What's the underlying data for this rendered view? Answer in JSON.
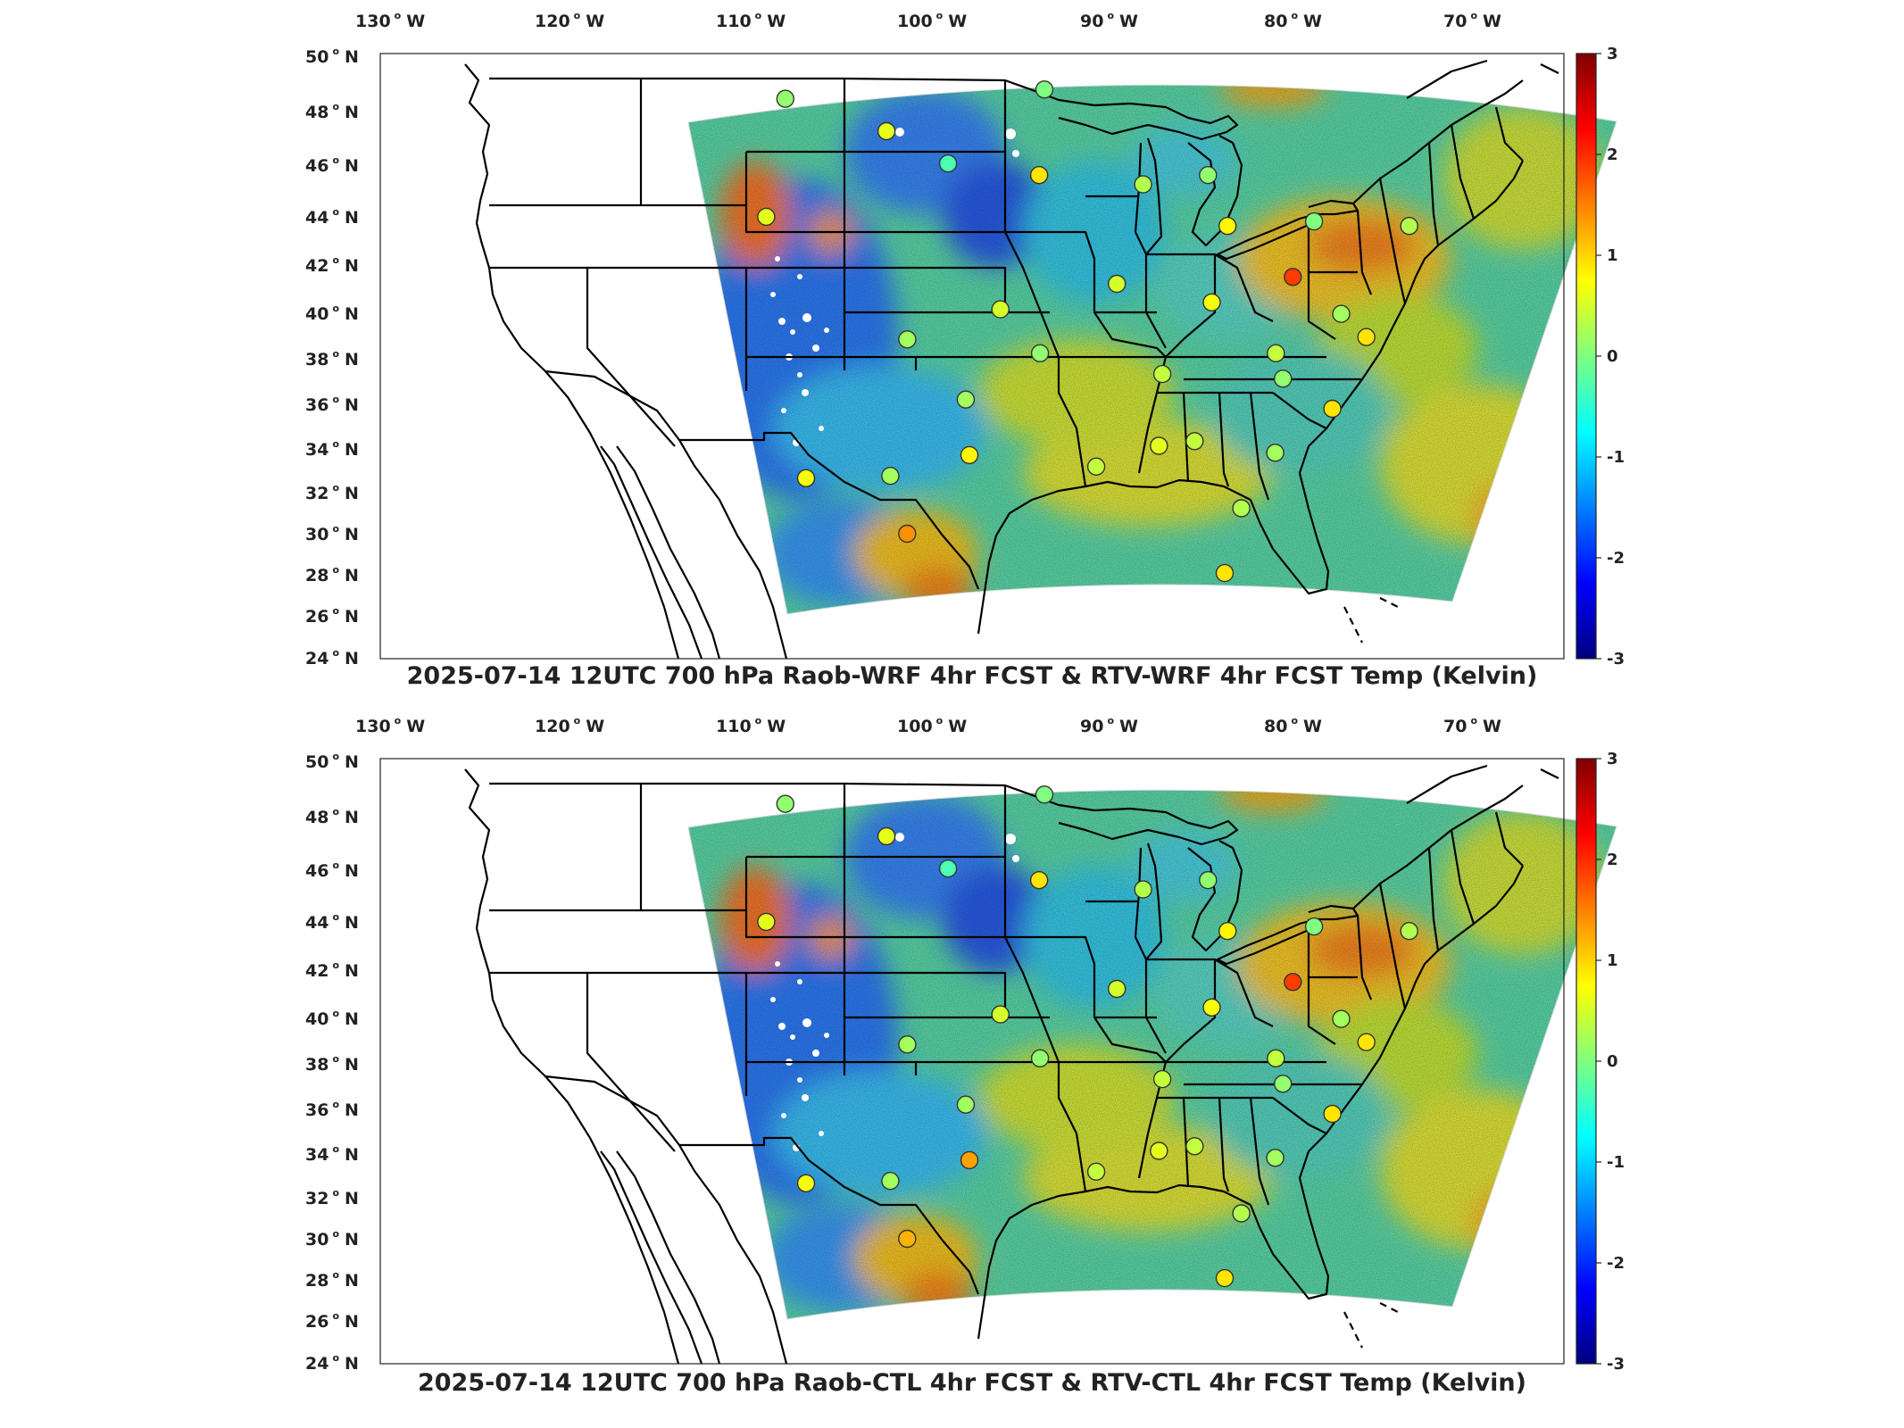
{
  "panels": [
    {
      "id": "top",
      "title": "2025-07-14 12UTC 700 hPa Raob-WRF 4hr FCST & RTV-WRF 4hr FCST Temp (Kelvin)",
      "lon_labels": [
        "130",
        "120",
        "110",
        "100",
        "90",
        "80",
        "70"
      ],
      "lon_suffix": "W",
      "lat_labels": [
        "50",
        "48",
        "46",
        "44",
        "42",
        "40",
        "38",
        "36",
        "34",
        "32",
        "30",
        "28",
        "26",
        "24"
      ],
      "lat_suffix": "N",
      "colorbar": {
        "min": -3,
        "max": 3,
        "ticks": [
          "3",
          "2",
          "1",
          "0",
          "-1",
          "-2",
          "-3"
        ]
      },
      "stations": [
        {
          "lon": -106.8,
          "lat": 48.2,
          "value": 0.1
        },
        {
          "lon": -101.6,
          "lat": 46.8,
          "value": 0.6
        },
        {
          "lon": -98.4,
          "lat": 45.4,
          "value": -0.3
        },
        {
          "lon": -93.6,
          "lat": 44.9,
          "value": 0.9
        },
        {
          "lon": -93.4,
          "lat": 48.6,
          "value": 0.0
        },
        {
          "lon": -108.1,
          "lat": 43.1,
          "value": 0.6
        },
        {
          "lon": -88.1,
          "lat": 44.5,
          "value": 0.3
        },
        {
          "lon": -84.7,
          "lat": 44.9,
          "value": 0.1
        },
        {
          "lon": -83.5,
          "lat": 42.7,
          "value": 0.8
        },
        {
          "lon": -78.9,
          "lat": 42.9,
          "value": 0.0
        },
        {
          "lon": -73.8,
          "lat": 42.7,
          "value": 0.3
        },
        {
          "lon": -79.8,
          "lat": 40.5,
          "value": 1.9
        },
        {
          "lon": -89.3,
          "lat": 40.2,
          "value": 0.5
        },
        {
          "lon": -84.1,
          "lat": 39.4,
          "value": 0.7
        },
        {
          "lon": -95.6,
          "lat": 39.1,
          "value": 0.5
        },
        {
          "lon": -100.7,
          "lat": 37.8,
          "value": 0.2
        },
        {
          "lon": -93.4,
          "lat": 37.2,
          "value": 0.1
        },
        {
          "lon": -80.4,
          "lat": 37.2,
          "value": 0.4
        },
        {
          "lon": -86.6,
          "lat": 36.3,
          "value": 0.4
        },
        {
          "lon": -77.0,
          "lat": 38.9,
          "value": 0.2
        },
        {
          "lon": -75.5,
          "lat": 37.9,
          "value": 0.9
        },
        {
          "lon": -79.9,
          "lat": 36.1,
          "value": 0.1
        },
        {
          "lon": -97.5,
          "lat": 35.2,
          "value": 0.2
        },
        {
          "lon": -77.0,
          "lat": 34.8,
          "value": 0.9
        },
        {
          "lon": -97.3,
          "lat": 32.8,
          "value": 0.8
        },
        {
          "lon": -101.8,
          "lat": 31.9,
          "value": 0.2
        },
        {
          "lon": -106.6,
          "lat": 31.8,
          "value": 0.7
        },
        {
          "lon": -90.1,
          "lat": 32.3,
          "value": 0.4
        },
        {
          "lon": -86.6,
          "lat": 33.2,
          "value": 0.6
        },
        {
          "lon": -84.6,
          "lat": 33.4,
          "value": 0.4
        },
        {
          "lon": -80.0,
          "lat": 32.9,
          "value": 0.2
        },
        {
          "lon": -81.7,
          "lat": 30.5,
          "value": 0.3
        },
        {
          "lon": -100.9,
          "lat": 29.4,
          "value": 1.4
        },
        {
          "lon": -82.4,
          "lat": 27.7,
          "value": 0.9
        }
      ]
    },
    {
      "id": "bottom",
      "title": "2025-07-14 12UTC 700 hPa Raob-CTL 4hr FCST & RTV-CTL 4hr FCST Temp (Kelvin)",
      "lon_labels": [
        "130",
        "120",
        "110",
        "100",
        "90",
        "80",
        "70"
      ],
      "lon_suffix": "W",
      "lat_labels": [
        "50",
        "48",
        "46",
        "44",
        "42",
        "40",
        "38",
        "36",
        "34",
        "32",
        "30",
        "28",
        "26",
        "24"
      ],
      "lat_suffix": "N",
      "colorbar": {
        "min": -3,
        "max": 3,
        "ticks": [
          "3",
          "2",
          "1",
          "0",
          "-1",
          "-2",
          "-3"
        ]
      },
      "stations": [
        {
          "lon": -106.8,
          "lat": 48.2,
          "value": 0.1
        },
        {
          "lon": -101.6,
          "lat": 46.8,
          "value": 0.6
        },
        {
          "lon": -98.4,
          "lat": 45.4,
          "value": -0.3
        },
        {
          "lon": -93.6,
          "lat": 44.9,
          "value": 0.9
        },
        {
          "lon": -93.4,
          "lat": 48.6,
          "value": 0.0
        },
        {
          "lon": -108.1,
          "lat": 43.1,
          "value": 0.6
        },
        {
          "lon": -88.1,
          "lat": 44.5,
          "value": 0.3
        },
        {
          "lon": -84.7,
          "lat": 44.9,
          "value": 0.1
        },
        {
          "lon": -83.5,
          "lat": 42.7,
          "value": 0.8
        },
        {
          "lon": -78.9,
          "lat": 42.9,
          "value": 0.0
        },
        {
          "lon": -73.8,
          "lat": 42.7,
          "value": 0.3
        },
        {
          "lon": -79.8,
          "lat": 40.5,
          "value": 1.9
        },
        {
          "lon": -89.3,
          "lat": 40.2,
          "value": 0.5
        },
        {
          "lon": -84.1,
          "lat": 39.4,
          "value": 0.7
        },
        {
          "lon": -95.6,
          "lat": 39.1,
          "value": 0.5
        },
        {
          "lon": -100.7,
          "lat": 37.8,
          "value": 0.2
        },
        {
          "lon": -93.4,
          "lat": 37.2,
          "value": 0.1
        },
        {
          "lon": -80.4,
          "lat": 37.2,
          "value": 0.4
        },
        {
          "lon": -86.6,
          "lat": 36.3,
          "value": 0.4
        },
        {
          "lon": -77.0,
          "lat": 38.9,
          "value": 0.2
        },
        {
          "lon": -75.5,
          "lat": 37.9,
          "value": 0.9
        },
        {
          "lon": -79.9,
          "lat": 36.1,
          "value": 0.1
        },
        {
          "lon": -97.5,
          "lat": 35.2,
          "value": 0.2
        },
        {
          "lon": -77.0,
          "lat": 34.8,
          "value": 0.9
        },
        {
          "lon": -97.3,
          "lat": 32.8,
          "value": 1.3
        },
        {
          "lon": -101.8,
          "lat": 31.9,
          "value": 0.2
        },
        {
          "lon": -106.6,
          "lat": 31.8,
          "value": 0.7
        },
        {
          "lon": -90.1,
          "lat": 32.3,
          "value": 0.4
        },
        {
          "lon": -86.6,
          "lat": 33.2,
          "value": 0.6
        },
        {
          "lon": -84.6,
          "lat": 33.4,
          "value": 0.4
        },
        {
          "lon": -80.0,
          "lat": 32.9,
          "value": 0.2
        },
        {
          "lon": -81.7,
          "lat": 30.5,
          "value": 0.3
        },
        {
          "lon": -100.9,
          "lat": 29.4,
          "value": 1.2
        },
        {
          "lon": -82.4,
          "lat": 27.7,
          "value": 0.9
        }
      ]
    }
  ],
  "colormap": "jet"
}
